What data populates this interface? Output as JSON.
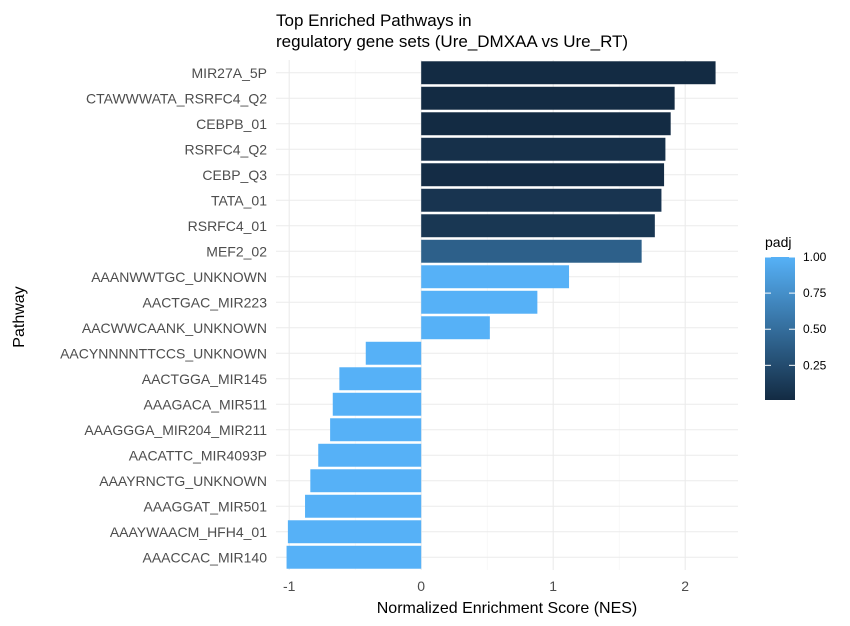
{
  "chart_data": {
    "type": "bar",
    "orientation": "horizontal",
    "title": "Top Enriched Pathways in\nregulatory gene sets (Ure_DMXAA vs Ure_RT)",
    "xlabel": "Normalized Enrichment Score (NES)",
    "ylabel": "Pathway",
    "xlim": [
      -1.1,
      2.4
    ],
    "x_ticks": [
      -1,
      0,
      1,
      2
    ],
    "x_tick_labels": [
      "-1",
      "0",
      "1",
      "2"
    ],
    "grid": true,
    "legend": {
      "title": "padj",
      "placement": "right",
      "type": "colorbar",
      "ticks": [
        1.0,
        0.75,
        0.5,
        0.25
      ],
      "tick_labels": [
        "1.00",
        "0.75",
        "0.50",
        "0.25"
      ],
      "range": [
        0.01,
        1.0
      ],
      "colors": {
        "low": "#132b43",
        "high": "#56b1f7"
      }
    },
    "categories": [
      "MIR27A_5P",
      "CTAWWWATA_RSRFC4_Q2",
      "CEBPB_01",
      "RSRFC4_Q2",
      "CEBP_Q3",
      "TATA_01",
      "RSRFC4_01",
      "MEF2_02",
      "AAANWWTGC_UNKNOWN",
      "AACTGAC_MIR223",
      "AACWWCAANK_UNKNOWN",
      "AACYNNNNTTCCS_UNKNOWN",
      "AACTGGA_MIR145",
      "AAAGACA_MIR511",
      "AAAGGGA_MIR204_MIR211",
      "AACATTC_MIR4093P",
      "AAAYRNCTG_UNKNOWN",
      "AAAGGAT_MIR501",
      "AAAYWAACM_HFH4_01",
      "AAACCAC_MIR140"
    ],
    "series": [
      {
        "values": [
          2.23,
          1.92,
          1.89,
          1.85,
          1.84,
          1.82,
          1.77,
          1.67,
          1.12,
          0.88,
          0.52,
          -0.42,
          -0.62,
          -0.67,
          -0.69,
          -0.78,
          -0.84,
          -0.88,
          -1.01,
          -1.02
        ],
        "padj": [
          0.01,
          0.01,
          0.01,
          0.05,
          0.02,
          0.08,
          0.1,
          0.4,
          1.0,
          1.0,
          1.0,
          1.0,
          1.0,
          1.0,
          1.0,
          1.0,
          1.0,
          1.0,
          1.0,
          1.0
        ]
      }
    ]
  }
}
